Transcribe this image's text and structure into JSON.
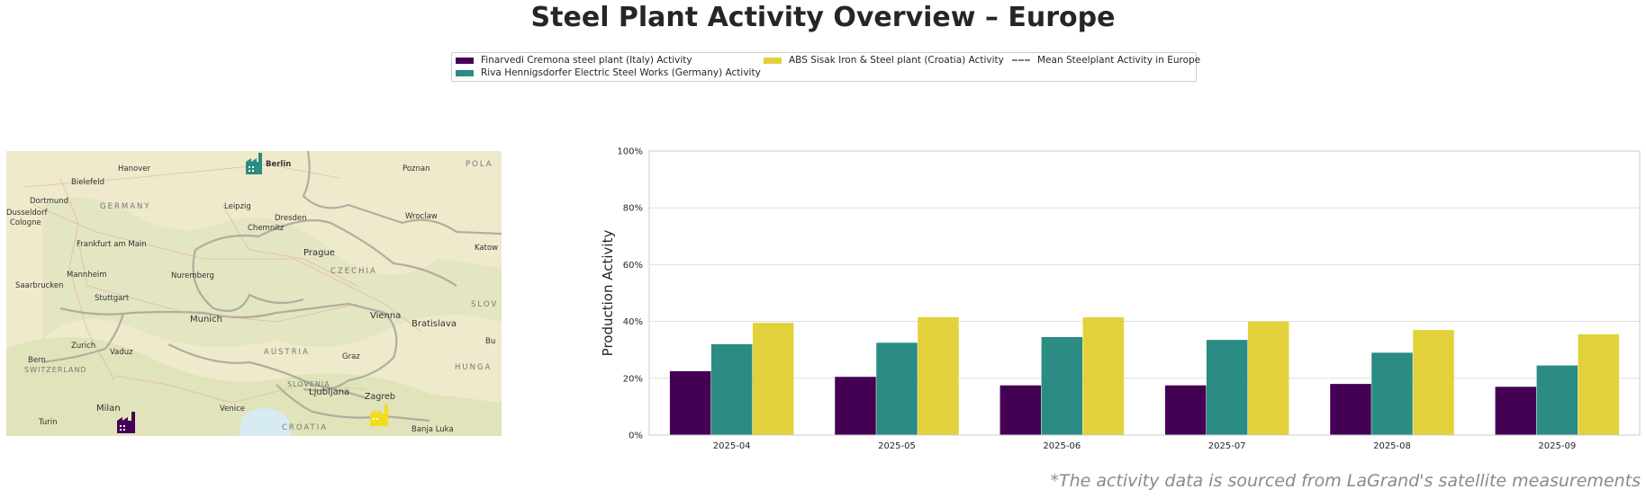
{
  "title": "Steel Plant Activity Overview – Europe",
  "legend": {
    "items": [
      {
        "label": "Finarvedi Cremona steel plant (Italy) Activity",
        "color": "#440154"
      },
      {
        "label": "Riva Hennigsdorfer Electric Steel Works (Germany) Activity",
        "color": "#2a8c82"
      },
      {
        "label": "ABS Sisak Iron & Steel plant (Croatia) Activity",
        "color": "#f2dc1e"
      },
      {
        "label": "Mean Steelplant Activity in Europe",
        "color": "#808080"
      }
    ]
  },
  "map": {
    "cities": [
      "Hanover",
      "Berlin",
      "Poznan",
      "POLA",
      "Bielefeld",
      "Dortmund",
      "GERMANY",
      "Dusseldorf",
      "Cologne",
      "Leipzig",
      "Dresden",
      "Wroclaw",
      "Chemnitz",
      "Frankfurt am Main",
      "Prague",
      "Katow",
      "Mannheim",
      "Nuremberg",
      "CZECHIA",
      "Saarbrucken",
      "Stuttgart",
      "SLOV",
      "Munich",
      "Vienna",
      "Bratislava",
      "Zurich",
      "Vaduz",
      "AUSTRIA",
      "Bu",
      "Bern",
      "SWITZERLAND",
      "Graz",
      "HUNGA",
      "SLOVENIA",
      "Ljubljana",
      "Zagreb",
      "Milan",
      "Venice",
      "Turin",
      "CROATIA",
      "Banja Luka"
    ],
    "markers": [
      {
        "plant": "Riva Hennigsdorfer Electric Steel Works",
        "color": "#2a8c82",
        "icon": "factory-icon"
      },
      {
        "plant": "Finarvedi Cremona steel plant",
        "color": "#440154",
        "icon": "factory-icon"
      },
      {
        "plant": "ABS Sisak Iron & Steel plant",
        "color": "#f2dc1e",
        "icon": "factory-icon"
      }
    ]
  },
  "chart_data": {
    "type": "bar",
    "categories": [
      "2025-04",
      "2025-05",
      "2025-06",
      "2025-07",
      "2025-08",
      "2025-09"
    ],
    "series": [
      {
        "name": "Finarvedi Cremona steel plant (Italy) Activity",
        "color": "#440154",
        "values": [
          22.5,
          20.5,
          17.5,
          17.5,
          18,
          17
        ]
      },
      {
        "name": "Riva Hennigsdorfer Electric Steel Works (Germany) Activity",
        "color": "#2a8c82",
        "values": [
          32,
          32.5,
          34.5,
          33.5,
          29,
          24.5
        ]
      },
      {
        "name": "ABS Sisak Iron & Steel plant (Croatia) Activity",
        "color": "#e3d13c",
        "values": [
          39.5,
          41.5,
          41.5,
          40,
          37,
          35.5
        ]
      }
    ],
    "ylabel": "Production Activity",
    "xlabel": "",
    "ylim": [
      0,
      100
    ],
    "yticks": [
      "0%",
      "20%",
      "40%",
      "60%",
      "80%",
      "100%"
    ],
    "grid": true
  },
  "footnote": "*The activity data is sourced from LaGrand's satellite measurements"
}
